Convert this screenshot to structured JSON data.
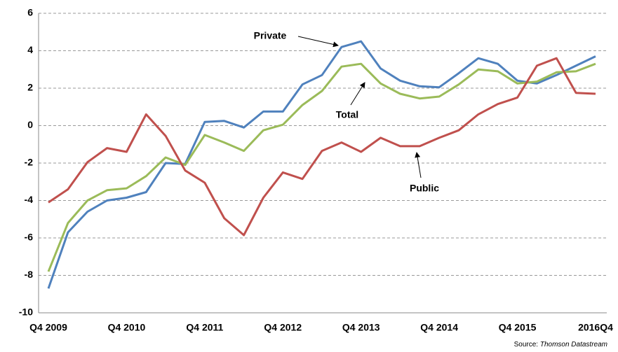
{
  "chart_data": {
    "type": "line",
    "categories": [
      "Q4 2009",
      null,
      null,
      null,
      "Q4 2010",
      null,
      null,
      null,
      "Q4 2011",
      null,
      null,
      null,
      "Q4 2012",
      null,
      null,
      null,
      "Q4 2013",
      null,
      null,
      null,
      "Q4 2014",
      null,
      null,
      null,
      "Q4 2015",
      null,
      null,
      null,
      "2016Q4"
    ],
    "series": [
      {
        "name": "Private",
        "color": "#4f81bd",
        "values": [
          -8.7,
          -5.7,
          -4.6,
          -4.0,
          -3.85,
          -3.55,
          -2.0,
          -2.05,
          0.2,
          0.25,
          -0.1,
          0.75,
          0.75,
          2.2,
          2.7,
          4.2,
          4.5,
          3.05,
          2.4,
          2.1,
          2.05,
          2.8,
          3.6,
          3.3,
          2.4,
          2.25,
          2.7,
          3.2,
          3.7
        ]
      },
      {
        "name": "Total",
        "color": "#9bbb59",
        "values": [
          -7.8,
          -5.2,
          -4.0,
          -3.45,
          -3.35,
          -2.7,
          -1.7,
          -2.1,
          -0.5,
          -0.9,
          -1.35,
          -0.25,
          0.05,
          1.1,
          1.85,
          3.15,
          3.3,
          2.25,
          1.7,
          1.45,
          1.55,
          2.2,
          3.0,
          2.9,
          2.25,
          2.35,
          2.85,
          2.9,
          3.3
        ]
      },
      {
        "name": "Public",
        "color": "#c0504d",
        "values": [
          -4.1,
          -3.4,
          -1.95,
          -1.2,
          -1.4,
          0.6,
          -0.55,
          -2.4,
          -3.05,
          -4.95,
          -5.85,
          -3.85,
          -2.5,
          -2.85,
          -1.35,
          -0.9,
          -1.4,
          -0.65,
          -1.1,
          -1.1,
          -0.65,
          -0.25,
          0.6,
          1.15,
          1.5,
          3.2,
          3.6,
          1.75,
          1.7
        ]
      }
    ],
    "ylim": [
      -10,
      6
    ],
    "yticks": [
      -10,
      -8,
      -6,
      -4,
      -2,
      0,
      2,
      4,
      6
    ],
    "grid": true,
    "source_label": "Source:",
    "source_name": "Thomson Datastream"
  }
}
